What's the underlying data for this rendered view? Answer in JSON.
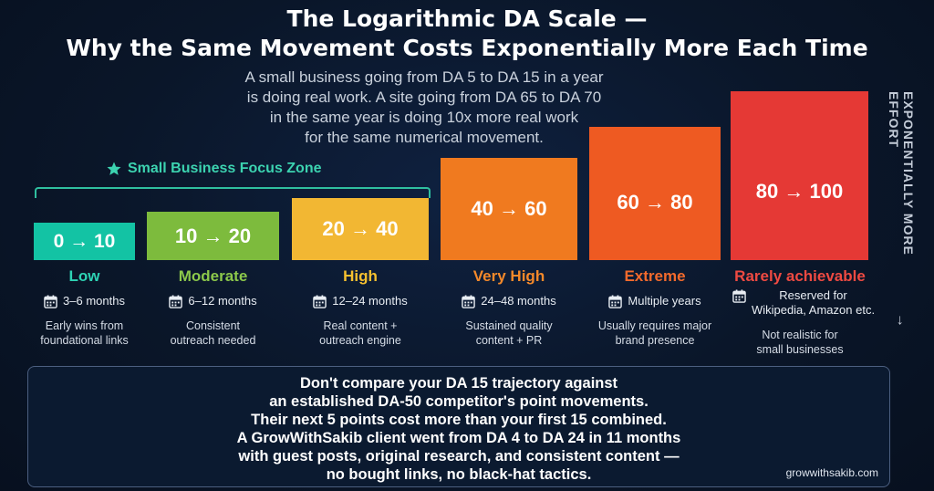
{
  "title_line1": "The Logarithmic DA Scale —",
  "title_line2": "Why the Same Movement Costs Exponentially More Each Time",
  "subtitle_lines": [
    "A small business going from DA 5 to DA 15 in a year",
    "is doing real work. A site going from DA 65 to DA 70",
    "in the same year is doing 10x more real work",
    "for the same numerical movement."
  ],
  "focus_zone_label": "Small Business Focus Zone",
  "side_label": "EXPONENTIALLY MORE EFFORT",
  "side_arrow": "→",
  "tiers": [
    {
      "range": "0 → 10",
      "level": "Low",
      "time": "3–6 months",
      "desc": [
        "Early wins from",
        "foundational links"
      ],
      "color": "#13c3a4",
      "label_color": "#2ed3b4"
    },
    {
      "range": "10 → 20",
      "level": "Moderate",
      "time": "6–12 months",
      "desc": [
        "Consistent",
        "outreach needed"
      ],
      "color": "#7dbb3d",
      "label_color": "#8cc84b"
    },
    {
      "range": "20 → 40",
      "level": "High",
      "time": "12–24 months",
      "desc": [
        "Real content +",
        "outreach engine"
      ],
      "color": "#f2b733",
      "label_color": "#f6c02f"
    },
    {
      "range": "40 → 60",
      "level": "Very High",
      "time": "24–48 months",
      "desc": [
        "Sustained quality",
        "content + PR"
      ],
      "color": "#f07a1f",
      "label_color": "#f5892a"
    },
    {
      "range": "60 → 80",
      "level": "Extreme",
      "time": "Multiple years",
      "desc": [
        "Usually requires major",
        "brand presence"
      ],
      "color": "#ee5a22",
      "label_color": "#f36a2c"
    },
    {
      "range": "80 → 100",
      "level": "Rarely achievable",
      "time_lines": [
        "Reserved for",
        "Wikipedia, Amazon etc."
      ],
      "desc": [
        "Not realistic for",
        "small businesses"
      ],
      "color": "#e53935",
      "label_color": "#ef4a42"
    }
  ],
  "note_lines": [
    "Don't compare your DA 15 trajectory against",
    "an established DA-50 competitor's point movements.",
    "Their next 5 points cost more than your first 15 combined.",
    "A GrowWithSakib client went from DA 4 to DA 24 in 11 months",
    "with guest posts, original research, and consistent content —",
    "no bought links, no black-hat tactics."
  ],
  "brand": "growwithsakib.com",
  "colors": {
    "background": "#0a1629",
    "accent_teal": "#2fbf9f"
  }
}
